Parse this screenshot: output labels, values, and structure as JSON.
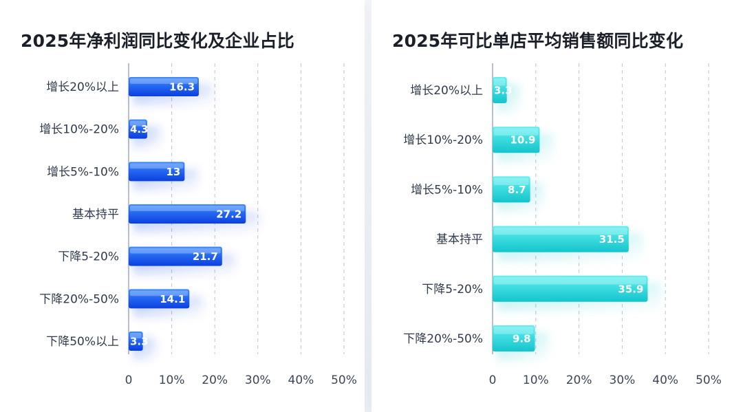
{
  "chart_data": [
    {
      "type": "bar",
      "orientation": "horizontal",
      "title": "2025年净利润同比变化及企业占比",
      "categories": [
        "增长20%以上",
        "增长10%-20%",
        "增长5%-10%",
        "基本持平",
        "下降5-20%",
        "下降20%-50%",
        "下降50%以上"
      ],
      "values": [
        16.3,
        4.3,
        13,
        27.2,
        21.7,
        14.1,
        3.3
      ],
      "value_labels": [
        "16.3",
        "4.3",
        "13",
        "27.2",
        "21.7",
        "14.1",
        "3.3"
      ],
      "xlim": [
        0,
        50
      ],
      "xticks": [
        0,
        10,
        20,
        30,
        40,
        50
      ],
      "xtick_labels": [
        "0",
        "10%",
        "20%",
        "30%",
        "40%",
        "50%"
      ],
      "grid": "dashed vertical",
      "bar_color_top": "#3d8bff",
      "bar_color_bottom": "#0a3fe0"
    },
    {
      "type": "bar",
      "orientation": "horizontal",
      "title": "2025年可比单店平均销售额同比变化",
      "categories": [
        "增长20%以上",
        "增长10%-20%",
        "增长5%-10%",
        "基本持平",
        "下降5-20%",
        "下降20%-50%"
      ],
      "values": [
        3.3,
        10.9,
        8.7,
        31.5,
        35.9,
        9.8
      ],
      "value_labels": [
        "3.3",
        "10.9",
        "8.7",
        "31.5",
        "35.9",
        "9.8"
      ],
      "xlim": [
        0,
        50
      ],
      "xticks": [
        0,
        10,
        20,
        30,
        40,
        50
      ],
      "xtick_labels": [
        "0",
        "10%",
        "20%",
        "30%",
        "40%",
        "50%"
      ],
      "grid": "dashed vertical",
      "bar_color_top": "#5ff0f0",
      "bar_color_bottom": "#14c4cc"
    }
  ]
}
